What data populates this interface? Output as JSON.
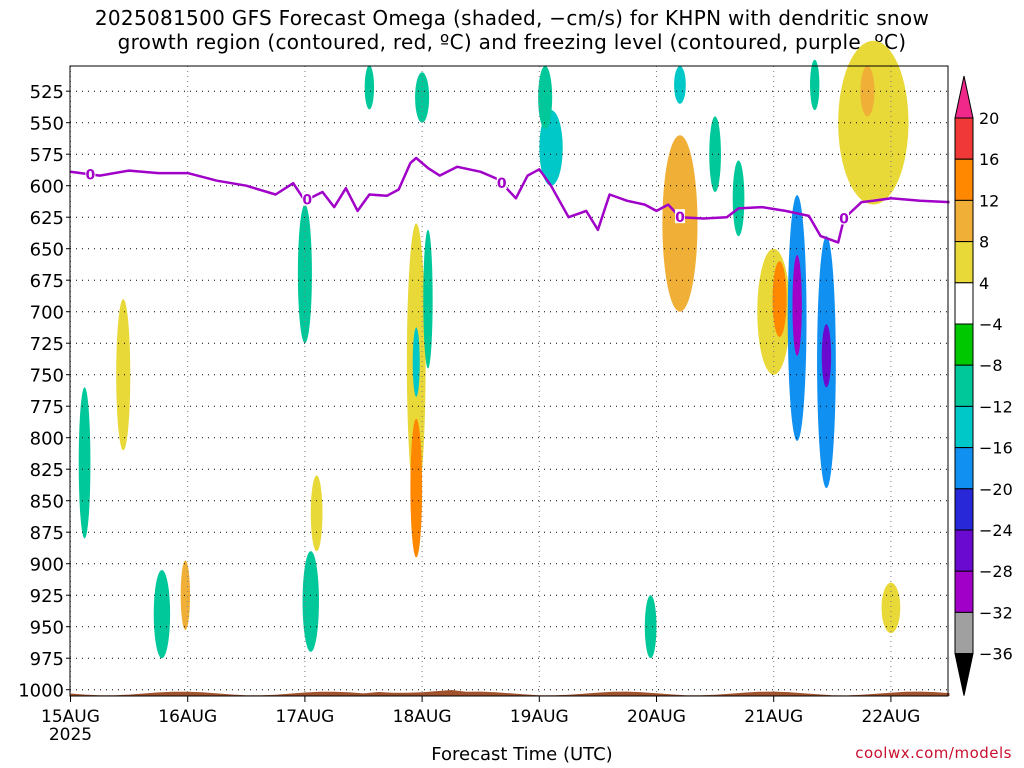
{
  "title": {
    "line1": "2025081500 GFS Forecast Omega (shaded, −cm/s) for KHPN with dendritic snow",
    "line2": "growth region (contoured, red, ºC) and freezing level (contoured, purple, ºC)"
  },
  "credit": "coolwx.com/models",
  "chart_data": {
    "type": "heatmap",
    "title": "2025081500 GFS Forecast Omega (shaded, −cm/s) for KHPN with dendritic snow growth region (contoured, red, ºC) and freezing level (contoured, purple, ºC)",
    "xlabel": "Forecast Time (UTC)",
    "ylabel": "",
    "x_tick_labels": [
      "15AUG",
      "16AUG",
      "17AUG",
      "18AUG",
      "19AUG",
      "20AUG",
      "21AUG",
      "22AUG"
    ],
    "x_tick_year": "2025",
    "x_domain_days": [
      0,
      7.5
    ],
    "y_tick_labels": [
      525,
      550,
      575,
      600,
      625,
      650,
      675,
      700,
      725,
      750,
      775,
      800,
      825,
      850,
      875,
      900,
      925,
      950,
      975,
      1000
    ],
    "y_domain_hpa": [
      505,
      1005
    ],
    "grid": "dotted",
    "colorbar": {
      "labels": [
        "20",
        "16",
        "12",
        "8",
        "4",
        "−4",
        "−8",
        "−12",
        "−16",
        "−20",
        "−24",
        "−28",
        "−32",
        "−36"
      ],
      "colors": [
        "#f80060",
        "#f03838",
        "#ff8800",
        "#f0b038",
        "#e8d838",
        "#ffffff",
        "#00c800",
        "#00c89a",
        "#00c8c8",
        "#1090f0",
        "#2828d8",
        "#6a0ad0",
        "#a000c8",
        "#a0a0a0"
      ],
      "top_arrow_color": "#f0288a",
      "bottom_arrow_color": "#000000"
    },
    "freezing_level_label": "0",
    "freezing_level": {
      "name": "freezing level",
      "color": "#a000c8",
      "points": [
        [
          0,
          589
        ],
        [
          0.25,
          592
        ],
        [
          0.5,
          588
        ],
        [
          0.75,
          590
        ],
        [
          1.0,
          590
        ],
        [
          1.25,
          596
        ],
        [
          1.5,
          600
        ],
        [
          1.75,
          607
        ],
        [
          1.9,
          598
        ],
        [
          2.0,
          612
        ],
        [
          2.15,
          605
        ],
        [
          2.25,
          617
        ],
        [
          2.35,
          602
        ],
        [
          2.45,
          620
        ],
        [
          2.55,
          607
        ],
        [
          2.7,
          608
        ],
        [
          2.8,
          603
        ],
        [
          2.9,
          582
        ],
        [
          2.95,
          578
        ],
        [
          3.05,
          586
        ],
        [
          3.15,
          592
        ],
        [
          3.3,
          585
        ],
        [
          3.5,
          589
        ],
        [
          3.65,
          595
        ],
        [
          3.8,
          610
        ],
        [
          3.9,
          592
        ],
        [
          4.0,
          587
        ],
        [
          4.1,
          600
        ],
        [
          4.25,
          625
        ],
        [
          4.4,
          620
        ],
        [
          4.5,
          635
        ],
        [
          4.6,
          607
        ],
        [
          4.75,
          612
        ],
        [
          4.9,
          615
        ],
        [
          5.0,
          620
        ],
        [
          5.1,
          615
        ],
        [
          5.2,
          625
        ],
        [
          5.4,
          626
        ],
        [
          5.6,
          625
        ],
        [
          5.7,
          618
        ],
        [
          5.9,
          617
        ],
        [
          6.1,
          620
        ],
        [
          6.3,
          624
        ],
        [
          6.4,
          640
        ],
        [
          6.55,
          645
        ],
        [
          6.6,
          626
        ],
        [
          6.75,
          613
        ],
        [
          6.85,
          612
        ],
        [
          7.0,
          610
        ],
        [
          7.25,
          612
        ],
        [
          7.5,
          613
        ]
      ]
    },
    "freezing_level_zero_labels_days": [
      0.17,
      2.02,
      3.68,
      5.2,
      6.6
    ],
    "omega_regions": [
      {
        "t": 0.12,
        "p": 820,
        "dt": 0.05,
        "dp": 120,
        "value": -8
      },
      {
        "t": 0.45,
        "p": 750,
        "dt": 0.06,
        "dp": 120,
        "value": 6
      },
      {
        "t": 0.78,
        "p": 940,
        "dt": 0.07,
        "dp": 70,
        "value": -8
      },
      {
        "t": 0.98,
        "p": 925,
        "dt": 0.04,
        "dp": 55,
        "value": 10
      },
      {
        "t": 2.0,
        "p": 670,
        "dt": 0.06,
        "dp": 110,
        "value": -10
      },
      {
        "t": 2.05,
        "p": 930,
        "dt": 0.07,
        "dp": 80,
        "value": -8
      },
      {
        "t": 2.1,
        "p": 860,
        "dt": 0.05,
        "dp": 60,
        "value": 6
      },
      {
        "t": 2.55,
        "p": 522,
        "dt": 0.04,
        "dp": 35,
        "value": -8
      },
      {
        "t": 2.95,
        "p": 740,
        "dt": 0.08,
        "dp": 220,
        "value": 6
      },
      {
        "t": 2.95,
        "p": 840,
        "dt": 0.05,
        "dp": 110,
        "value": 12
      },
      {
        "t": 2.95,
        "p": 740,
        "dt": 0.03,
        "dp": 55,
        "value": -12
      },
      {
        "t": 3.05,
        "p": 690,
        "dt": 0.04,
        "dp": 110,
        "value": -8
      },
      {
        "t": 3.0,
        "p": 530,
        "dt": 0.06,
        "dp": 40,
        "value": -8
      },
      {
        "t": 4.1,
        "p": 570,
        "dt": 0.1,
        "dp": 60,
        "value": -12
      },
      {
        "t": 4.05,
        "p": 530,
        "dt": 0.06,
        "dp": 50,
        "value": -8
      },
      {
        "t": 4.95,
        "p": 950,
        "dt": 0.05,
        "dp": 50,
        "value": -8
      },
      {
        "t": 5.2,
        "p": 630,
        "dt": 0.15,
        "dp": 140,
        "value": 8
      },
      {
        "t": 5.2,
        "p": 520,
        "dt": 0.05,
        "dp": 30,
        "value": -12
      },
      {
        "t": 5.5,
        "p": 575,
        "dt": 0.05,
        "dp": 60,
        "value": -8
      },
      {
        "t": 5.7,
        "p": 610,
        "dt": 0.05,
        "dp": 60,
        "value": -8
      },
      {
        "t": 6.0,
        "p": 700,
        "dt": 0.14,
        "dp": 100,
        "value": 6
      },
      {
        "t": 6.05,
        "p": 690,
        "dt": 0.06,
        "dp": 60,
        "value": 14
      },
      {
        "t": 6.2,
        "p": 705,
        "dt": 0.08,
        "dp": 195,
        "value": -16
      },
      {
        "t": 6.2,
        "p": 695,
        "dt": 0.04,
        "dp": 80,
        "value": -28
      },
      {
        "t": 6.45,
        "p": 740,
        "dt": 0.08,
        "dp": 200,
        "value": -16
      },
      {
        "t": 6.45,
        "p": 735,
        "dt": 0.04,
        "dp": 50,
        "value": -24
      },
      {
        "t": 6.35,
        "p": 520,
        "dt": 0.04,
        "dp": 40,
        "value": -8
      },
      {
        "t": 6.85,
        "p": 550,
        "dt": 0.3,
        "dp": 130,
        "value": 6
      },
      {
        "t": 6.8,
        "p": 525,
        "dt": 0.06,
        "dp": 40,
        "value": 10
      },
      {
        "t": 7.0,
        "p": 935,
        "dt": 0.08,
        "dp": 40,
        "value": 6
      }
    ]
  }
}
